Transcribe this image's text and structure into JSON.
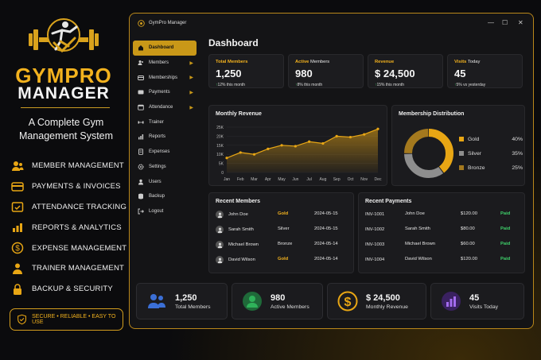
{
  "promo": {
    "brand_line1": "GYMPRO",
    "brand_line2": "MANAGER",
    "tagline": "A Complete Gym Management System",
    "features": [
      {
        "icon": "members-icon",
        "label": "MEMBER MANAGEMENT"
      },
      {
        "icon": "payments-icon",
        "label": "PAYMENTS & INVOICES"
      },
      {
        "icon": "calendar-check-icon",
        "label": "ATTENDANCE TRACKING"
      },
      {
        "icon": "bar-chart-icon",
        "label": "REPORTS & ANALYTICS"
      },
      {
        "icon": "dollar-icon",
        "label": "EXPENSE MANAGEMENT"
      },
      {
        "icon": "trainer-icon",
        "label": "TRAINER MANAGEMENT"
      },
      {
        "icon": "lock-icon",
        "label": "BACKUP & SECURITY"
      }
    ],
    "badge": "SECURE • RELIABLE • EASY TO USE"
  },
  "window": {
    "title": "GymPro Manager",
    "min": "—",
    "max": "☐",
    "close": "✕"
  },
  "nav": [
    {
      "label": "Dashboard",
      "active": true,
      "chevron": false
    },
    {
      "label": "Members",
      "chevron": true
    },
    {
      "label": "Memberships",
      "chevron": true
    },
    {
      "label": "Payments",
      "chevron": true
    },
    {
      "label": "Attendance",
      "chevron": true
    },
    {
      "label": "Trainer",
      "chevron": false
    },
    {
      "label": "Reports",
      "chevron": false
    },
    {
      "label": "Expenses",
      "chevron": false
    },
    {
      "label": "Settings",
      "chevron": false
    },
    {
      "label": "Users",
      "chevron": false
    },
    {
      "label": "Backup",
      "chevron": false
    },
    {
      "label": "Logout",
      "chevron": false
    }
  ],
  "page_title": "Dashboard",
  "stats": [
    {
      "label_bold": "Total Members",
      "label_rest": "",
      "value": "1,250",
      "change_arrow": "↑",
      "change_pct": "12%",
      "change_text": " this month"
    },
    {
      "label_bold": "Active",
      "label_rest": " Members",
      "value": "980",
      "change_arrow": "↑",
      "change_pct": "8%",
      "change_text": " this month"
    },
    {
      "label_bold": "Revenue",
      "label_rest": "",
      "value": "$ 24,500",
      "change_arrow": "↑",
      "change_pct": "15%",
      "change_text": " this month"
    },
    {
      "label_bold": "Visits",
      "label_rest": " Today",
      "value": "45",
      "change_arrow": "↑",
      "change_pct": "5%",
      "change_text": " vs yesterday"
    }
  ],
  "monthly_revenue_title": "Monthly Revenue",
  "membership_title": "Membership Distribution",
  "membership": [
    {
      "name": "Gold",
      "pct": "40%",
      "value": 40,
      "color": "#e8a614"
    },
    {
      "name": "Silver",
      "pct": "35%",
      "value": 35,
      "color": "#8e8e8e"
    },
    {
      "name": "Bronze",
      "pct": "25%",
      "value": 25,
      "color": "#a4791e"
    }
  ],
  "recent_members_title": "Recent Members",
  "recent_members": [
    {
      "name": "John Doe",
      "plan": "Gold",
      "date": "2024-05-15"
    },
    {
      "name": "Sarah Smith",
      "plan": "Silver",
      "date": "2024-05-15"
    },
    {
      "name": "Michael Brown",
      "plan": "Bronze",
      "date": "2024-05-14"
    },
    {
      "name": "David Wilson",
      "plan": "Gold",
      "date": "2024-05-14"
    }
  ],
  "recent_payments_title": "Recent Payments",
  "recent_payments": [
    {
      "invoice": "INV-1001",
      "name": "John Doe",
      "amount": "$120.00",
      "status": "Paid"
    },
    {
      "invoice": "INV-1002",
      "name": "Sarah Smith",
      "amount": "$80.00",
      "status": "Paid"
    },
    {
      "invoice": "INV-1003",
      "name": "Michael Brown",
      "amount": "$60.00",
      "status": "Paid"
    },
    {
      "invoice": "INV-1004",
      "name": "David Wilson",
      "amount": "$120.00",
      "status": "Paid"
    }
  ],
  "bottom_cards": [
    {
      "icon": "members-icon",
      "value": "1,250",
      "label": "Total Members",
      "color": "#3b6fd6"
    },
    {
      "icon": "active-member-icon",
      "value": "980",
      "label": "Active Members",
      "color": "#2fb35a"
    },
    {
      "icon": "dollar-icon",
      "value": "$ 24,500",
      "label": "Monthly Revenue",
      "color": "#e8a614"
    },
    {
      "icon": "bar-chart-icon",
      "value": "45",
      "label": "Visits Today",
      "color": "#8a4fd8"
    }
  ],
  "chart_data": {
    "type": "area",
    "title": "Monthly Revenue",
    "categories": [
      "Jan",
      "Feb",
      "Mar",
      "Apr",
      "May",
      "Jun",
      "Jul",
      "Aug",
      "Sep",
      "Oct",
      "Nov",
      "Dec"
    ],
    "values": [
      8000,
      11000,
      10000,
      13000,
      15000,
      14500,
      17000,
      16000,
      20000,
      19500,
      21000,
      24000
    ],
    "yticks": [
      "0",
      "5K",
      "10K",
      "15K",
      "20K",
      "25K"
    ],
    "ylim": [
      0,
      25000
    ],
    "color": "#e8a614"
  }
}
